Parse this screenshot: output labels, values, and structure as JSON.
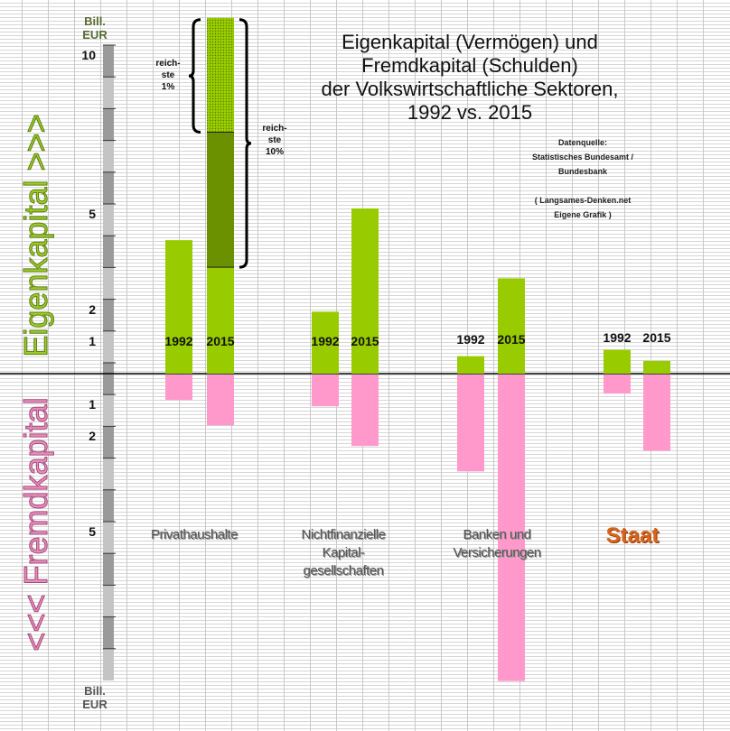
{
  "chart_data": {
    "type": "bar",
    "title": "Eigenkapital (Vermögen) und Fremdkapital (Schulden) der Volkswirtschaftliche Sektoren, 1992 vs. 2015",
    "title_lines": [
      "Eigenkapital (Vermögen) und",
      "Fremdkapital (Schulden)",
      "der Volkswirtschaftliche Sektoren,",
      "1992 vs. 2015"
    ],
    "source_lines": [
      "Datenquelle:",
      "Statistisches  Bundesamt  /",
      "Bundesbank",
      "",
      "( Langsames-Denken.net",
      "Eigene  Grafik )"
    ],
    "ylabel_positive": "Eigenkapital  >>>",
    "ylabel_negative": "<<<  Fremdkapital",
    "unit_top": [
      "Bill.",
      "EUR"
    ],
    "unit_bottom": [
      "Bill.",
      "EUR"
    ],
    "yticks_positive": [
      1,
      2,
      5,
      10
    ],
    "yticks_negative": [
      1,
      2,
      5
    ],
    "ylim": [
      -10,
      11.3
    ],
    "grid": true,
    "categories": [
      "Privathaushalte",
      "Nichtfinanzielle Kapital-gesellschaften",
      "Banken und Versicherungen",
      "Staat"
    ],
    "category_lines": [
      [
        "Privathaushalte"
      ],
      [
        "Nichtfinanzielle",
        "Kapital-",
        "gesellschaften"
      ],
      [
        "Banken und",
        "Versicherungen"
      ],
      [
        "Staat"
      ]
    ],
    "years": [
      "1992",
      "2015"
    ],
    "series": [
      {
        "name": "Eigenkapital",
        "color": "#99cc00",
        "values_1992": [
          4.2,
          1.95,
          0.55,
          0.75
        ],
        "values_2015": [
          11.2,
          5.2,
          3.0,
          0.4
        ]
      },
      {
        "name": "Fremdkapital",
        "color": "#ff99cc",
        "values_1992": [
          0.8,
          1.0,
          3.05,
          0.6
        ],
        "values_2015": [
          1.6,
          2.25,
          9.65,
          2.4
        ]
      }
    ],
    "privathaushalte_2015_breakdown": {
      "reichste_1pct_from": 7.6,
      "reichste_10pct_from": 3.35,
      "label_1pct": [
        "reich-",
        "ste",
        "1%"
      ],
      "label_10pct": [
        "reich-",
        "ste",
        "10%"
      ]
    },
    "colors": {
      "positive_label": "#8cb21e",
      "negative_label": "#d77aa8",
      "staat": "#d9641a"
    }
  }
}
